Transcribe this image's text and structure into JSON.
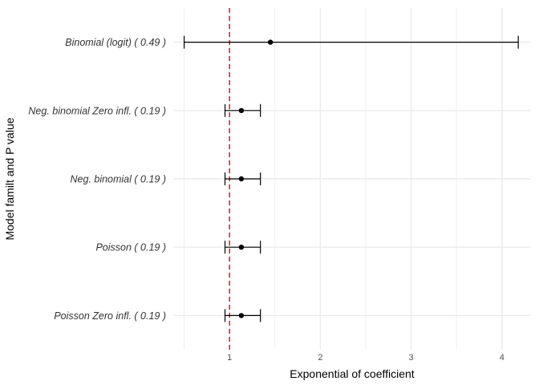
{
  "chart_data": {
    "type": "forest",
    "xlabel": "Exponential of coefficient",
    "ylabel": "Model familt and P value",
    "x_ticks": [
      1,
      2,
      3,
      4
    ],
    "x_tick_labels": [
      "1",
      "2",
      "3",
      "4"
    ],
    "xlim": [
      0.38,
      4.32
    ],
    "grid": true,
    "reference_line": {
      "x": 1,
      "color": "#e8202a",
      "style": "dashed"
    },
    "colors": {
      "point": "#000000",
      "errorbar": "#000000",
      "grid": "#ebebeb"
    },
    "rows": [
      {
        "label": "Binomial (logit) ( 0.49 )",
        "estimate": 1.45,
        "lower": 0.5,
        "upper": 4.18
      },
      {
        "label": "Neg. binomial Zero infl. ( 0.19 )",
        "estimate": 1.13,
        "lower": 0.95,
        "upper": 1.34
      },
      {
        "label": "Neg. binomial ( 0.19 )",
        "estimate": 1.13,
        "lower": 0.95,
        "upper": 1.34
      },
      {
        "label": "Poisson ( 0.19 )",
        "estimate": 1.13,
        "lower": 0.95,
        "upper": 1.34
      },
      {
        "label": "Poisson Zero infl. ( 0.19 )",
        "estimate": 1.13,
        "lower": 0.95,
        "upper": 1.34
      }
    ]
  }
}
